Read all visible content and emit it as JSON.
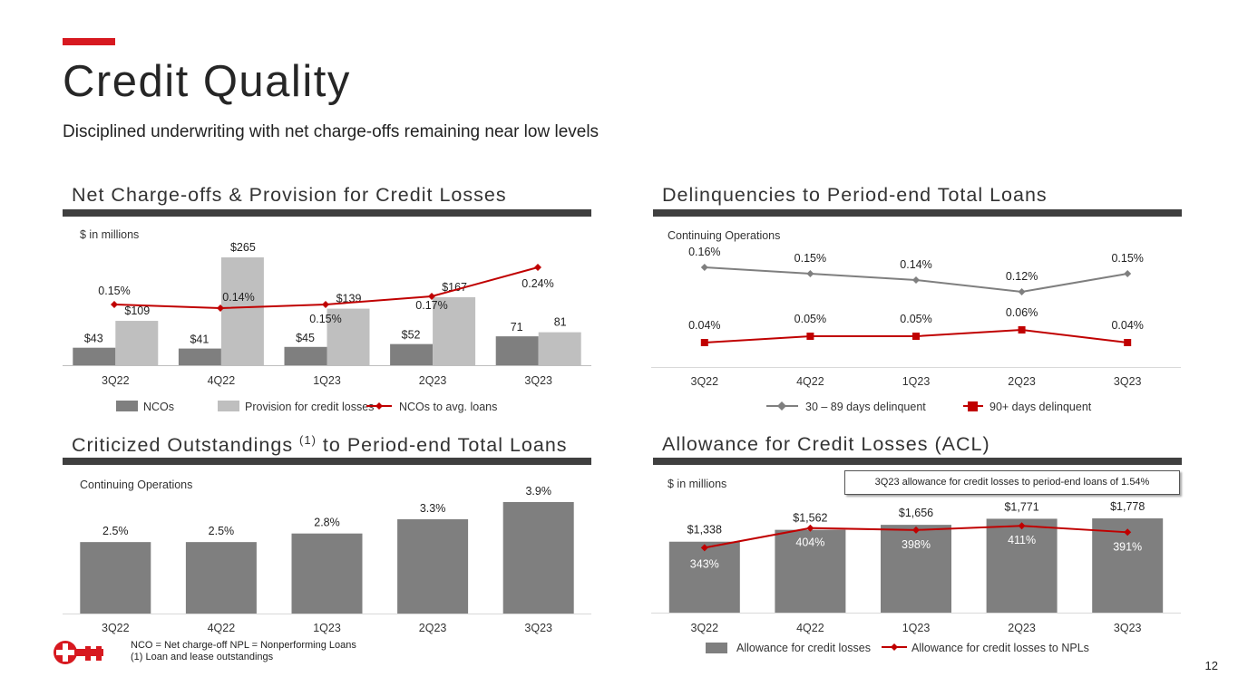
{
  "page": {
    "title": "Credit Quality",
    "subtitle": "Disciplined underwriting with net charge-offs remaining near low levels",
    "page_number": "12",
    "brand_color": "#d71920"
  },
  "sections": {
    "nco": {
      "title": "Net Charge-offs & Provision for Credit Losses",
      "note": "$ in millions"
    },
    "delinq": {
      "title": "Delinquencies to Period-end Total Loans",
      "note": "Continuing Operations"
    },
    "crit": {
      "title_main": "Criticized Outstandings ",
      "title_sup": "(1)",
      "title_end": " to Period-end Total Loans",
      "note": "Continuing Operations"
    },
    "acl": {
      "title": "Allowance for Credit Losses (ACL)",
      "note": "$ in millions",
      "callout": "3Q23 allowance for credit losses to period-end loans of 1.54%"
    }
  },
  "footer": {
    "line1": "NCO = Net charge-off   NPL = Nonperforming Loans",
    "line2": "(1) Loan and lease outstandings"
  },
  "chart_data": [
    {
      "id": "nco",
      "type": "bar",
      "categories": [
        "3Q22",
        "4Q22",
        "1Q23",
        "2Q23",
        "3Q23"
      ],
      "series": [
        {
          "name": "NCOs",
          "kind": "bar",
          "color": "#7f7f7f",
          "values": [
            43,
            41,
            45,
            52,
            71
          ],
          "labels": [
            "$43",
            "$41",
            "$45",
            "$52",
            "71"
          ]
        },
        {
          "name": "Provision for credit losses",
          "kind": "bar",
          "color": "#bfbfbf",
          "values": [
            109,
            265,
            139,
            167,
            81
          ],
          "labels": [
            "$109",
            "$265",
            "$139",
            "$167",
            "81"
          ]
        },
        {
          "name": "NCOs to avg. loans",
          "kind": "line",
          "color": "#c00000",
          "values": [
            0.15,
            0.14,
            0.15,
            0.17,
            0.24
          ],
          "labels": [
            "0.15%",
            "0.14%",
            "0.15%",
            "0.17%",
            "0.24%"
          ]
        }
      ],
      "ylim": [
        0,
        265
      ],
      "y2lim": [
        0.0,
        0.24
      ],
      "legend": "bottom",
      "grid": false
    },
    {
      "id": "delinq",
      "type": "line",
      "categories": [
        "3Q22",
        "4Q22",
        "1Q23",
        "2Q23",
        "3Q23"
      ],
      "series": [
        {
          "name": "30 – 89 days delinquent",
          "color": "#7f7f7f",
          "marker": "diamond",
          "values": [
            0.16,
            0.15,
            0.14,
            0.12,
            0.15
          ],
          "labels": [
            "0.16%",
            "0.15%",
            "0.14%",
            "0.12%",
            "0.15%"
          ]
        },
        {
          "name": "90+ days delinquent",
          "color": "#c00000",
          "marker": "square",
          "values": [
            0.04,
            0.05,
            0.05,
            0.06,
            0.04
          ],
          "labels": [
            "0.04%",
            "0.05%",
            "0.05%",
            "0.06%",
            "0.04%"
          ]
        }
      ],
      "legend": "bottom",
      "grid": false
    },
    {
      "id": "crit",
      "type": "bar",
      "categories": [
        "3Q22",
        "4Q22",
        "1Q23",
        "2Q23",
        "3Q23"
      ],
      "series": [
        {
          "color": "#7f7f7f",
          "values": [
            2.5,
            2.5,
            2.8,
            3.3,
            3.9
          ],
          "labels": [
            "2.5%",
            "2.5%",
            "2.8%",
            "3.3%",
            "3.9%"
          ]
        }
      ],
      "ylim": [
        0,
        3.9
      ],
      "legend": "none",
      "grid": false
    },
    {
      "id": "acl",
      "type": "bar",
      "categories": [
        "3Q22",
        "4Q22",
        "1Q23",
        "2Q23",
        "3Q23"
      ],
      "series": [
        {
          "name": "Allowance for credit losses",
          "kind": "bar",
          "color": "#7f7f7f",
          "values": [
            1338,
            1562,
            1656,
            1771,
            1778
          ],
          "labels": [
            "$1,338",
            "$1,562",
            "$1,656",
            "$1,771",
            "$1,778"
          ]
        },
        {
          "name": "Allowance for credit losses to NPLs",
          "kind": "line",
          "color": "#c00000",
          "values": [
            343,
            404,
            398,
            411,
            391
          ],
          "labels": [
            "343%",
            "404%",
            "398%",
            "411%",
            "391%"
          ]
        }
      ],
      "ylim": [
        0,
        1778
      ],
      "legend": "bottom",
      "grid": false
    }
  ]
}
